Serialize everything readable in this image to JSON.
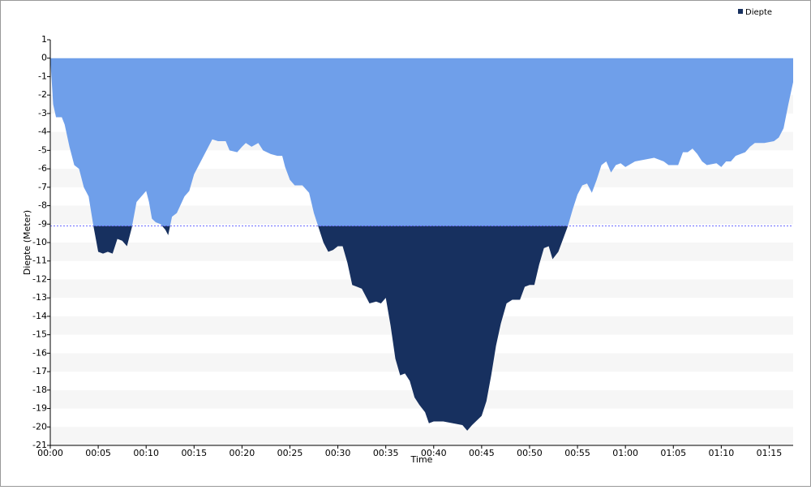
{
  "chart_data": {
    "type": "area",
    "x_label": "Time",
    "y_label": "Diepte (Meter)",
    "x": [
      0,
      0.3,
      0.6,
      1.2,
      1.5,
      2,
      2.5,
      3,
      3.5,
      4,
      4.5,
      5,
      5.5,
      6,
      6.5,
      7,
      7.5,
      8,
      8.5,
      9,
      9.5,
      10,
      10.3,
      10.6,
      11,
      11.5,
      12,
      12.3,
      12.7,
      13.2,
      14,
      14.5,
      15,
      15.6,
      16.3,
      16.9,
      17.5,
      18.3,
      18.7,
      19.5,
      20,
      20.4,
      21,
      21.7,
      22.2,
      23,
      23.7,
      24.2,
      24.5,
      25,
      25.5,
      26.3,
      27,
      27.5,
      28,
      28.5,
      29,
      29.5,
      30,
      30.5,
      31,
      31.5,
      32,
      32.5,
      33.3,
      34,
      34.5,
      35,
      35.5,
      36,
      36.5,
      37,
      37.5,
      38,
      38.5,
      39.1,
      39.5,
      40,
      41,
      42,
      43,
      43.5,
      44,
      45,
      45.5,
      46,
      46.5,
      47,
      47.6,
      48.2,
      49,
      49.5,
      50,
      50.5,
      51,
      51.5,
      52,
      52.4,
      53,
      53.5,
      54,
      54.5,
      55,
      55.5,
      56,
      56.5,
      57,
      57.5,
      58,
      58.5,
      59,
      59.5,
      60,
      61,
      62,
      63,
      64,
      64.5,
      65.5,
      66,
      66.5,
      67,
      67.5,
      68,
      68.5,
      69.5,
      70,
      70.5,
      71,
      71.5,
      72,
      72.5,
      73,
      73.5,
      74.5,
      75.5,
      76,
      76.5,
      77,
      77.5
    ],
    "series": [
      {
        "name": "Diepte",
        "color": "#17305f",
        "color_shallow": "#6f9fea",
        "values": [
          0,
          -2.5,
          -3.2,
          -3.2,
          -3.6,
          -4.8,
          -5.8,
          -6,
          -7,
          -7.5,
          -9.1,
          -10.5,
          -10.6,
          -10.5,
          -10.6,
          -9.8,
          -9.9,
          -10.2,
          -9.2,
          -7.8,
          -7.5,
          -7.2,
          -7.8,
          -8.7,
          -8.9,
          -9,
          -9.3,
          -9.6,
          -8.6,
          -8.4,
          -7.5,
          -7.2,
          -6.3,
          -5.7,
          -5,
          -4.4,
          -4.5,
          -4.5,
          -5,
          -5.1,
          -4.8,
          -4.6,
          -4.8,
          -4.6,
          -5,
          -5.2,
          -5.3,
          -5.3,
          -5.9,
          -6.6,
          -6.9,
          -6.9,
          -7.3,
          -8.4,
          -9.2,
          -10,
          -10.5,
          -10.4,
          -10.2,
          -10.2,
          -11.1,
          -12.3,
          -12.4,
          -12.5,
          -13.3,
          -13.2,
          -13.3,
          -13,
          -14.5,
          -16.3,
          -17.2,
          -17.1,
          -17.5,
          -18.4,
          -18.8,
          -19.2,
          -19.8,
          -19.7,
          -19.7,
          -19.8,
          -19.9,
          -20.2,
          -19.9,
          -19.4,
          -18.6,
          -17.2,
          -15.6,
          -14.4,
          -13.3,
          -13.1,
          -13.1,
          -12.4,
          -12.3,
          -12.3,
          -11.2,
          -10.3,
          -10.2,
          -10.9,
          -10.5,
          -9.8,
          -9.1,
          -8.2,
          -7.4,
          -6.9,
          -6.8,
          -7.3,
          -6.6,
          -5.8,
          -5.6,
          -6.2,
          -5.8,
          -5.7,
          -5.9,
          -5.6,
          -5.5,
          -5.4,
          -5.6,
          -5.8,
          -5.8,
          -5.1,
          -5.1,
          -4.9,
          -5.2,
          -5.6,
          -5.8,
          -5.7,
          -5.9,
          -5.6,
          -5.6,
          -5.3,
          -5.2,
          -5.1,
          -4.8,
          -4.6,
          -4.6,
          -4.5,
          -4.3,
          -3.8,
          -2.5,
          -1.3
        ]
      }
    ],
    "threshold": -9.1,
    "xlim": [
      0,
      77.5
    ],
    "xticks": [
      {
        "value": 0,
        "label": "00:00"
      },
      {
        "value": 5,
        "label": "00:05"
      },
      {
        "value": 10,
        "label": "00:10"
      },
      {
        "value": 15,
        "label": "00:15"
      },
      {
        "value": 20,
        "label": "00:20"
      },
      {
        "value": 25,
        "label": "00:25"
      },
      {
        "value": 30,
        "label": "00:30"
      },
      {
        "value": 35,
        "label": "00:35"
      },
      {
        "value": 40,
        "label": "00:40"
      },
      {
        "value": 45,
        "label": "00:45"
      },
      {
        "value": 50,
        "label": "00:50"
      },
      {
        "value": 55,
        "label": "00:55"
      },
      {
        "value": 60,
        "label": "01:00"
      },
      {
        "value": 65,
        "label": "01:05"
      },
      {
        "value": 70,
        "label": "01:10"
      },
      {
        "value": 75,
        "label": "01:15"
      }
    ],
    "ylim": [
      -21,
      1
    ],
    "yticks": [
      1,
      0,
      -1,
      -2,
      -3,
      -4,
      -5,
      -6,
      -7,
      -8,
      -9,
      -10,
      -11,
      -12,
      -13,
      -14,
      -15,
      -16,
      -17,
      -18,
      -19,
      -20,
      -21
    ],
    "grid": true,
    "legend": "top-right"
  }
}
